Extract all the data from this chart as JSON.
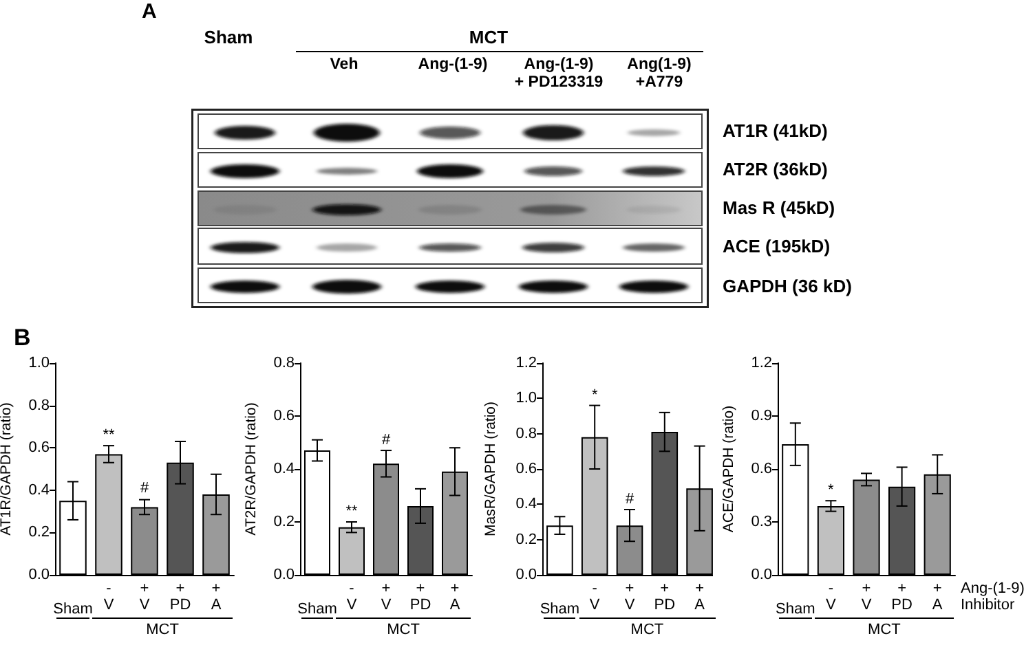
{
  "chart_data": [
    {
      "type": "other",
      "title": "A",
      "annotations": [
        "Sham",
        "MCT",
        "Veh",
        "Ang-(1-9)",
        "Ang-(1-9)\n+ PD123319",
        "Ang(1-9)\n+A779",
        "AT1R (41kD)",
        "AT2R (36kD)",
        "Mas R (45kD)",
        "ACE (195kD)",
        "GAPDH (36 kD)"
      ]
    },
    {
      "type": "bar",
      "title": "B",
      "ylabel": "AT1R/GAPDH (ratio)",
      "categories": [
        "Sham",
        "-\nV",
        "+\nV",
        "+\nPD",
        "+\nA"
      ],
      "values": [
        0.35,
        0.57,
        0.32,
        0.53,
        0.38
      ],
      "errors": [
        0.09,
        0.04,
        0.035,
        0.1,
        0.095
      ],
      "colors": [
        "#ffffff",
        "#c0c0c0",
        "#8c8c8c",
        "#555555",
        "#9a9a9a"
      ],
      "ylim": [
        0,
        1
      ],
      "yticks": [
        {
          "value": 0,
          "label": "0.0"
        },
        {
          "value": 0.2,
          "label": "0.2"
        },
        {
          "value": 0.4,
          "label": "0.4"
        },
        {
          "value": 0.6,
          "label": "0.6"
        },
        {
          "value": 0.8,
          "label": "0.8"
        },
        {
          "value": 1,
          "label": "1.0"
        }
      ],
      "annotations": [
        {
          "text": "**",
          "x": "-\nV",
          "y": 0.61
        },
        {
          "text": "#",
          "x": "+\nV",
          "y": 0.36
        },
        "MCT"
      ]
    },
    {
      "type": "bar",
      "ylabel": "AT2R/GAPDH (ratio)",
      "categories": [
        "Sham",
        "-\nV",
        "+\nV",
        "+\nPD",
        "+\nA"
      ],
      "values": [
        0.47,
        0.18,
        0.42,
        0.26,
        0.39
      ],
      "errors": [
        0.04,
        0.02,
        0.05,
        0.065,
        0.09
      ],
      "colors": [
        "#ffffff",
        "#c0c0c0",
        "#8c8c8c",
        "#555555",
        "#9a9a9a"
      ],
      "ylim": [
        0,
        0.8
      ],
      "yticks": [
        {
          "value": 0,
          "label": "0.0"
        },
        {
          "value": 0.2,
          "label": "0.2"
        },
        {
          "value": 0.4,
          "label": "0.4"
        },
        {
          "value": 0.6,
          "label": "0.6"
        },
        {
          "value": 0.8,
          "label": "0.8"
        }
      ],
      "annotations": [
        {
          "text": "**",
          "x": "-\nV",
          "y": 0.2
        },
        {
          "text": "#",
          "x": "+\nV",
          "y": 0.47
        },
        "MCT"
      ]
    },
    {
      "type": "bar",
      "ylabel": "MasR/GAPDH (ratio)",
      "categories": [
        "Sham",
        "-\nV",
        "+\nV",
        "+\nPD",
        "+\nA"
      ],
      "values": [
        0.28,
        0.78,
        0.28,
        0.81,
        0.49
      ],
      "errors": [
        0.05,
        0.18,
        0.09,
        0.11,
        0.24
      ],
      "colors": [
        "#ffffff",
        "#c0c0c0",
        "#8c8c8c",
        "#555555",
        "#9a9a9a"
      ],
      "ylim": [
        0,
        1.2
      ],
      "yticks": [
        {
          "value": 0,
          "label": "0.0"
        },
        {
          "value": 0.2,
          "label": "0.2"
        },
        {
          "value": 0.4,
          "label": "0.4"
        },
        {
          "value": 0.6,
          "label": "0.6"
        },
        {
          "value": 0.8,
          "label": "0.8"
        },
        {
          "value": 1,
          "label": "1.0"
        },
        {
          "value": 1.2,
          "label": "1.2"
        }
      ],
      "annotations": [
        {
          "text": "*",
          "x": "-\nV",
          "y": 0.96
        },
        {
          "text": "#",
          "x": "+\nV",
          "y": 0.37
        },
        "MCT"
      ]
    },
    {
      "type": "bar",
      "ylabel": "ACE/GAPDH (ratio)",
      "categories": [
        "Sham",
        "-\nV",
        "+\nV",
        "+\nPD",
        "+\nA"
      ],
      "values": [
        0.74,
        0.39,
        0.54,
        0.5,
        0.57
      ],
      "errors": [
        0.12,
        0.03,
        0.035,
        0.11,
        0.11
      ],
      "colors": [
        "#ffffff",
        "#c0c0c0",
        "#8c8c8c",
        "#555555",
        "#9a9a9a"
      ],
      "ylim": [
        0,
        1.2
      ],
      "yticks": [
        {
          "value": 0,
          "label": "0.0"
        },
        {
          "value": 0.3,
          "label": "0.3"
        },
        {
          "value": 0.6,
          "label": "0.6"
        },
        {
          "value": 0.9,
          "label": "0.9"
        },
        {
          "value": 1.2,
          "label": "1.2"
        }
      ],
      "annotations": [
        {
          "text": "*",
          "x": "-\nV",
          "y": 0.42
        },
        "MCT",
        "Ang-(1-9)",
        "Inhibitor"
      ]
    }
  ]
}
